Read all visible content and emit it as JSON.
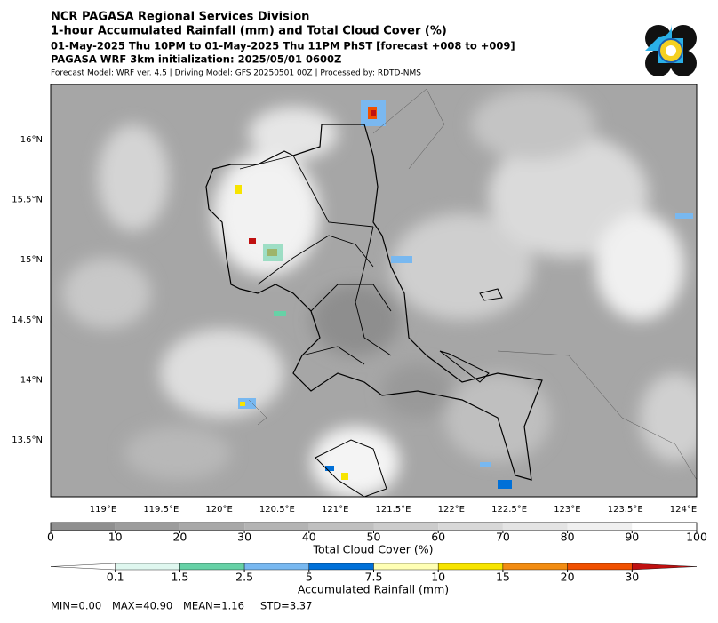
{
  "header": {
    "lines": [
      "NCR PAGASA Regional Services Division",
      "1-hour Accumulated Rainfall (mm) and Total Cloud Cover (%)",
      "01-May-2025 Thu 10PM to 01-May-2025 Thu 11PM PhST [forecast +008 to +009]",
      "PAGASA WRF 3km initialization: 2025/05/01 0600Z",
      "Forecast Model: WRF ver. 4.5 | Driving Model: GFS 20250501 00Z | Processed by: RDTD-NMS"
    ]
  },
  "map": {
    "lon_labels": [
      "119°E",
      "119.5°E",
      "120°E",
      "120.5°E",
      "121°E",
      "121.5°E",
      "122°E",
      "122.5°E",
      "123°E",
      "123.5°E",
      "124°E"
    ],
    "lat_labels": [
      "16°N",
      "15.5°N",
      "15°N",
      "14.5°N",
      "14°N",
      "13.5°N"
    ]
  },
  "cloud_colorbar": {
    "label": "Total Cloud Cover (%)",
    "ticks": [
      0,
      10,
      20,
      30,
      40,
      50,
      60,
      70,
      80,
      90,
      100
    ],
    "colors": [
      "#8f8f8f",
      "#9c9c9c",
      "#a8a8a8",
      "#b4b4b4",
      "#c0c0c0",
      "#cccccc",
      "#d8d8d8",
      "#e4e4e4",
      "#f0f0f0",
      "#ffffff"
    ]
  },
  "rain_colorbar": {
    "label": "Accumulated Rainfall (mm)",
    "ticks": [
      "0.1",
      "1.5",
      "2.5",
      "5",
      "7.5",
      "10",
      "15",
      "20",
      "30"
    ],
    "colors": [
      "#ffffff",
      "#dff7ef",
      "#66d1a6",
      "#78b8f0",
      "#0070d8",
      "#ffffb4",
      "#f7e400",
      "#f28c12",
      "#f05000",
      "#c01010"
    ]
  },
  "stats": [
    "MIN=0.00",
    "MAX=40.90",
    "MEAN=1.16",
    "STD=3.37"
  ]
}
